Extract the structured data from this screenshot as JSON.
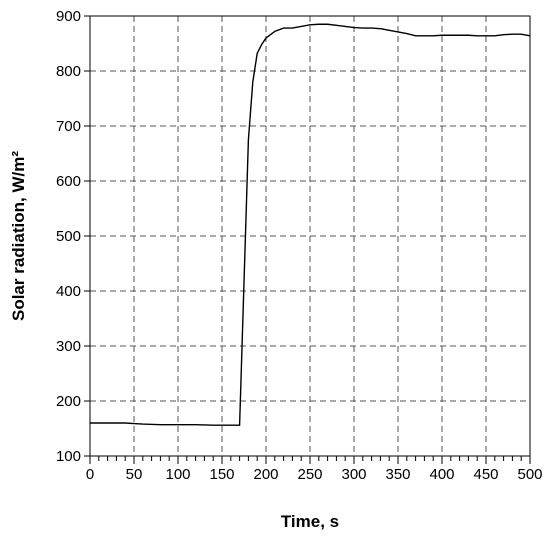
{
  "chart_data": {
    "type": "line",
    "xlabel": "Time, s",
    "ylabel": "Solar radiation, W/m²",
    "xlim": [
      0,
      500
    ],
    "ylim": [
      100,
      900
    ],
    "x_ticks": [
      0,
      50,
      100,
      150,
      200,
      250,
      300,
      350,
      400,
      450,
      500
    ],
    "x_minor_step": 10,
    "y_ticks": [
      100,
      200,
      300,
      400,
      500,
      600,
      700,
      800,
      900
    ],
    "grid": true,
    "line_color": "#000000",
    "grid_color": "#555555",
    "series": [
      {
        "x": [
          0,
          20,
          40,
          50,
          60,
          80,
          100,
          120,
          140,
          160,
          170,
          180,
          185,
          190,
          195,
          200,
          205,
          210,
          220,
          230,
          240,
          250,
          260,
          270,
          280,
          290,
          300,
          310,
          320,
          330,
          340,
          350,
          360,
          370,
          380,
          390,
          400,
          410,
          420,
          430,
          440,
          450,
          460,
          470,
          480,
          490,
          500
        ],
        "y": [
          160,
          160,
          160,
          159,
          158,
          157,
          157,
          157,
          156,
          156,
          156,
          675,
          780,
          832,
          848,
          860,
          866,
          872,
          878,
          878,
          881,
          884,
          885,
          885,
          883,
          881,
          879,
          878,
          878,
          877,
          874,
          871,
          868,
          864,
          864,
          864,
          865,
          865,
          865,
          865,
          864,
          864,
          864,
          866,
          867,
          867,
          864
        ]
      }
    ]
  }
}
